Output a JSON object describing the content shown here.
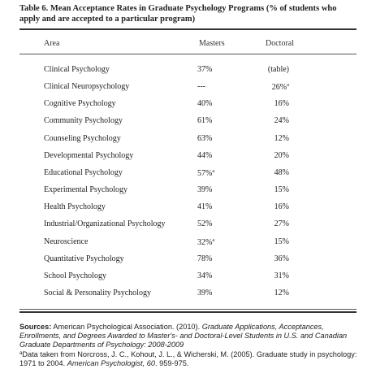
{
  "title": "Table 6.  Mean Acceptance Rates in Graduate Psychology Programs (% of students who apply and are accepted to a particular program)",
  "columns": {
    "area": "Area",
    "masters": "Masters",
    "doctoral": "Doctoral"
  },
  "rows": [
    {
      "area": "Clinical Psychology",
      "masters": "37%",
      "masters_sup": "",
      "doctoral": "(table)",
      "doctoral_sup": ""
    },
    {
      "area": "Clinical Neuropsychology",
      "masters": "---",
      "masters_sup": "",
      "doctoral": "26%",
      "doctoral_sup": "a"
    },
    {
      "area": "Cognitive Psychology",
      "masters": "40%",
      "masters_sup": "",
      "doctoral": "16%",
      "doctoral_sup": ""
    },
    {
      "area": "Community Psychology",
      "masters": "61%",
      "masters_sup": "",
      "doctoral": "24%",
      "doctoral_sup": ""
    },
    {
      "area": "Counseling Psychology",
      "masters": "63%",
      "masters_sup": "",
      "doctoral": "12%",
      "doctoral_sup": ""
    },
    {
      "area": "Developmental Psychology",
      "masters": "44%",
      "masters_sup": "",
      "doctoral": "20%",
      "doctoral_sup": ""
    },
    {
      "area": "Educational Psychology",
      "masters": "57%",
      "masters_sup": "a",
      "doctoral": "48%",
      "doctoral_sup": ""
    },
    {
      "area": "Experimental Psychology",
      "masters": "39%",
      "masters_sup": "",
      "doctoral": "15%",
      "doctoral_sup": ""
    },
    {
      "area": "Health Psychology",
      "masters": "41%",
      "masters_sup": "",
      "doctoral": "16%",
      "doctoral_sup": ""
    },
    {
      "area": "Industrial/Organizational Psychology",
      "masters": "52%",
      "masters_sup": "",
      "doctoral": "27%",
      "doctoral_sup": ""
    },
    {
      "area": "Neuroscience",
      "masters": "32%",
      "masters_sup": "a",
      "doctoral": "15%",
      "doctoral_sup": ""
    },
    {
      "area": "Quantitative Psychology",
      "masters": "78%",
      "masters_sup": "",
      "doctoral": "36%",
      "doctoral_sup": ""
    },
    {
      "area": "School Psychology",
      "masters": "34%",
      "masters_sup": "",
      "doctoral": "31%",
      "doctoral_sup": ""
    },
    {
      "area": "Social & Personality Psychology",
      "masters": "39%",
      "masters_sup": "",
      "doctoral": "12%",
      "doctoral_sup": ""
    }
  ],
  "notes": {
    "sources_label": "Sources:",
    "source1_plain": " American Psychological Association. (2010). ",
    "source1_italic": "Graduate Applications, Acceptances, Enrollments, and Degrees Awarded to Master's- and Doctoral-Level Students in U.S. and Canadian Graduate Departments of Psychology: 2008-2009",
    "footnote_marker": "a",
    "footnote_plain": "Data taken from  Norcross, J. C., Kohout, J. L., & Wicherski, M. (2005). Graduate study in psychology: 1971 to 2004. ",
    "footnote_italic": "American Psychologist, 60",
    "footnote_end": ". 959-975."
  }
}
